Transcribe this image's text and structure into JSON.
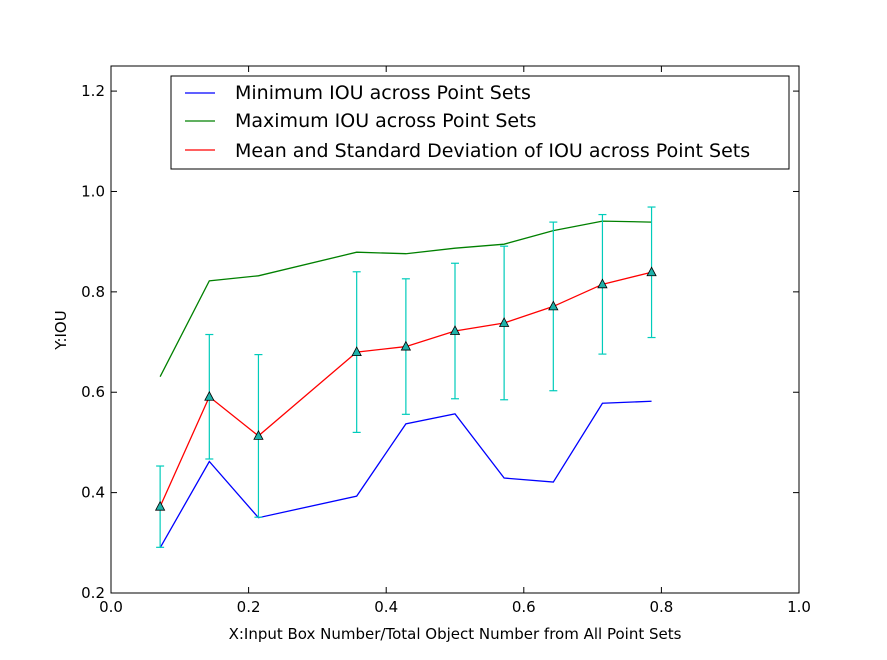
{
  "chart_data": {
    "type": "line",
    "title": "",
    "xlabel": "X:Input Box Number/Total Object Number from All Point Sets",
    "ylabel": "Y:IOU",
    "xlim": [
      0.0,
      1.0
    ],
    "ylim": [
      0.2,
      1.25
    ],
    "xticks": [
      "0.0",
      "0.2",
      "0.4",
      "0.6",
      "0.8",
      "1.0"
    ],
    "yticks": [
      "0.2",
      "0.4",
      "0.6",
      "0.8",
      "1.0",
      "1.2"
    ],
    "grid": false,
    "legend_position": "top",
    "x": [
      0.0714,
      0.1429,
      0.2143,
      0.3571,
      0.4286,
      0.5,
      0.5714,
      0.6429,
      0.7143,
      0.7857
    ],
    "series": [
      {
        "name": "Minimum IOU across Point Sets",
        "color": "#0000ff",
        "values": [
          0.29,
          0.462,
          0.35,
          0.393,
          0.537,
          0.557,
          0.429,
          0.421,
          0.578,
          0.582
        ]
      },
      {
        "name": "Maximum IOU across Point Sets",
        "color": "#008000",
        "values": [
          0.631,
          0.822,
          0.832,
          0.879,
          0.876,
          0.887,
          0.895,
          0.922,
          0.941,
          0.939
        ]
      },
      {
        "name": "Mean and Standard Deviation of IOU across Point Sets",
        "color": "#ff0000",
        "marker_color": "#20b2aa",
        "errorbar_color": "#00ccbb",
        "values": [
          0.372,
          0.591,
          0.513,
          0.68,
          0.691,
          0.722,
          0.738,
          0.771,
          0.815,
          0.839
        ],
        "error": [
          0.081,
          0.124,
          0.162,
          0.16,
          0.135,
          0.135,
          0.153,
          0.168,
          0.139,
          0.13
        ]
      }
    ]
  }
}
